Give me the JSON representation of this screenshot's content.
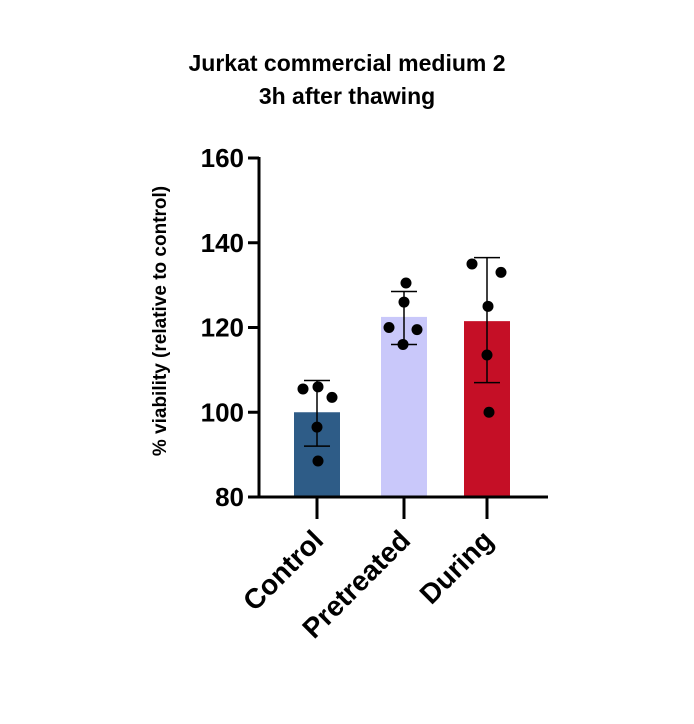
{
  "chart_data": {
    "type": "bar",
    "title": "Jurkat commercial medium 2",
    "subtitle": "3h after thawing",
    "xlabel": "",
    "ylabel": "% viability (relative to control)",
    "ylim": [
      80,
      160
    ],
    "yticks": [
      80,
      100,
      120,
      140,
      160
    ],
    "categories": [
      "Control",
      "Pretreated",
      "During"
    ],
    "values": [
      100,
      122.5,
      121.5
    ],
    "error": [
      {
        "low": 92,
        "high": 107.5
      },
      {
        "low": 116,
        "high": 128.5
      },
      {
        "low": 107,
        "high": 136.5
      }
    ],
    "points": [
      [
        105.5,
        106,
        103.5,
        96.5,
        88.5
      ],
      [
        130.5,
        126,
        120,
        119.5,
        116
      ],
      [
        135,
        133,
        125,
        113.5,
        100
      ]
    ],
    "colors": [
      "#2e5c87",
      "#c9c8fa",
      "#c50f26"
    ],
    "grid": false,
    "legend": "none"
  }
}
